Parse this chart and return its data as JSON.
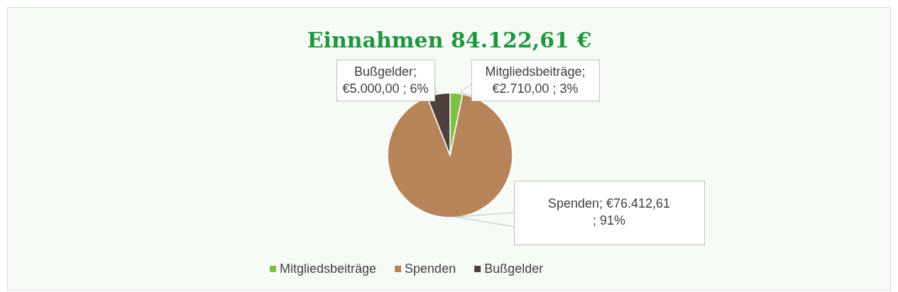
{
  "chart_data": {
    "type": "pie",
    "title": "Einnahmen 84.122,61 €",
    "categories": [
      "Mitgliedsbeiträge",
      "Spenden",
      "Bußgelder"
    ],
    "values": [
      2710.0,
      76412.61,
      5000.0
    ],
    "colors": [
      "#7dc142",
      "#b7845a",
      "#4f403b"
    ],
    "value_labels": [
      "Mitgliedsbeiträge;\n€2.710,00 ; 3%",
      "Spenden;  €76.412,61\n; 91%",
      "Bußgelder;\n€5.000,00 ; 6%"
    ],
    "legend": "bottom"
  }
}
